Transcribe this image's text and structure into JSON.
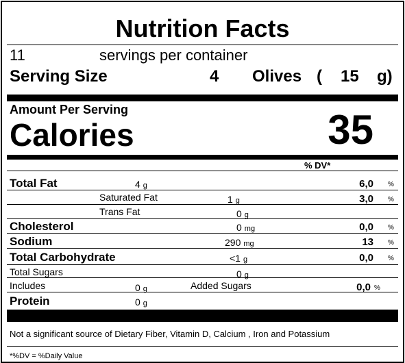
{
  "header": {
    "title": "Nutrition Facts",
    "servings": "11",
    "servings_text": "servings per container",
    "serving_size_label": "Serving Size",
    "serving_amount": "4",
    "serving_unit": "Olives",
    "open_paren": "(",
    "serving_weight": "15",
    "weight_unit": "g)"
  },
  "calories": {
    "amount_per_serving": "Amount Per Serving",
    "label": "Calories",
    "value": "35"
  },
  "dv_header": "% DV*",
  "rows": [
    {
      "name": "Total Fat",
      "amount": "4",
      "unit": "g",
      "dv": "6,0",
      "pct": "%"
    },
    {
      "name": "Saturated Fat",
      "amount": "1",
      "unit": "g",
      "dv": "3,0",
      "pct": "%"
    },
    {
      "name": "Trans Fat",
      "amount": "0",
      "unit": "g"
    },
    {
      "name": "Cholesterol",
      "amount": "0",
      "unit": "mg",
      "dv": "0,0",
      "pct": "%"
    },
    {
      "name": "Sodium",
      "amount": "290",
      "unit": "mg",
      "dv": "13",
      "pct": "%"
    },
    {
      "name": "Total Carbohydrate",
      "amount": "<1",
      "unit": "g",
      "dv": "0,0",
      "pct": "%"
    },
    {
      "name": "Total Sugars",
      "amount": "0",
      "unit": "g"
    },
    {
      "name": "Includes",
      "amount": "0",
      "unit": "g",
      "extra": "Added Sugars",
      "dv": "0,0",
      "pct": "%"
    },
    {
      "name": "Protein",
      "amount": "0",
      "unit": "g"
    }
  ],
  "footnote": "Not a significant source of Dietary Fiber, Vitamin D, Calcium , Iron and Potassium",
  "legend": "*%DV = %Daily Value"
}
